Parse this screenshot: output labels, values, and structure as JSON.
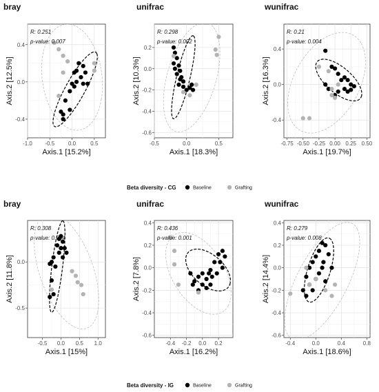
{
  "chart_data": [
    {
      "type": "scatter",
      "title": "bray",
      "xlabel": "Axis.1  [15.2%]",
      "ylabel": "Axis.2  [12.5%]",
      "xlim": [
        -1.0,
        0.75
      ],
      "ylim": [
        -0.6,
        0.62
      ],
      "xticks": [
        -1.0,
        -0.5,
        0.0,
        0.5
      ],
      "yticks": [
        -0.4,
        0.0,
        0.4
      ],
      "xtick_labels": [
        "-1.0",
        "-0.5",
        "0.0",
        "0.5"
      ],
      "ytick_labels": [
        "-0.4",
        "0.0",
        "0.4"
      ],
      "annotation": {
        "r": "R: 0.251",
        "p": "p-value: 0.007"
      },
      "grid": true,
      "series": [
        {
          "name": "Baseline",
          "color": "#000000",
          "points": [
            [
              0.15,
              0.2
            ],
            [
              0.25,
              0.17
            ],
            [
              0.1,
              0.12
            ],
            [
              0.05,
              0.1
            ],
            [
              0.3,
              0.1
            ],
            [
              0.2,
              0.05
            ],
            [
              0.1,
              0.0
            ],
            [
              0.0,
              -0.02
            ],
            [
              0.25,
              -0.02
            ],
            [
              0.35,
              -0.02
            ],
            [
              -0.05,
              -0.1
            ],
            [
              0.05,
              -0.05
            ],
            [
              -0.15,
              -0.2
            ],
            [
              -0.05,
              -0.3
            ],
            [
              -0.25,
              -0.32
            ],
            [
              -0.2,
              -0.35
            ],
            [
              -0.2,
              -0.4
            ]
          ]
        },
        {
          "name": "Grafting",
          "color": "#b3b3b3",
          "points": [
            [
              -0.4,
              0.42
            ],
            [
              -0.3,
              0.35
            ],
            [
              -0.2,
              0.28
            ],
            [
              -0.1,
              0.22
            ],
            [
              0.5,
              0.2
            ],
            [
              0.5,
              0.12
            ],
            [
              -0.2,
              0.1
            ],
            [
              -0.3,
              -0.15
            ]
          ]
        }
      ],
      "ellipses": [
        {
          "group": "Baseline",
          "cx": 0.07,
          "cy": -0.08,
          "rx": 0.62,
          "ry": 0.16,
          "angle": 38,
          "style": "dashed-black"
        },
        {
          "group": "Grafting",
          "cx": 0.0,
          "cy": 0.05,
          "rx": 0.7,
          "ry": 0.55,
          "angle": -20,
          "style": "dashed-gray"
        }
      ]
    },
    {
      "type": "scatter",
      "title": "unifrac",
      "xlabel": "Axis.1  [18.3%]",
      "ylabel": "Axis.2  [10.3%]",
      "xlim": [
        -0.5,
        0.72
      ],
      "ylim": [
        -0.65,
        0.42
      ],
      "xticks": [
        -0.5,
        0.0,
        0.5
      ],
      "yticks": [
        -0.6,
        -0.4,
        -0.2,
        0.0,
        0.2
      ],
      "xtick_labels": [
        "-0.5",
        "0.0",
        "0.5"
      ],
      "ytick_labels": [
        "-0.6",
        "-0.4",
        "-0.2",
        "0.0",
        "0.2"
      ],
      "annotation": {
        "r": "R: 0.298",
        "p": "p-value: 0.002"
      },
      "grid": true,
      "series": [
        {
          "name": "Baseline",
          "color": "#000000",
          "points": [
            [
              -0.2,
              0.2
            ],
            [
              -0.18,
              0.15
            ],
            [
              -0.15,
              0.1
            ],
            [
              -0.2,
              0.05
            ],
            [
              -0.12,
              0.03
            ],
            [
              -0.18,
              0.0
            ],
            [
              -0.1,
              -0.02
            ],
            [
              -0.15,
              -0.05
            ],
            [
              -0.08,
              -0.08
            ],
            [
              -0.05,
              -0.12
            ],
            [
              -0.12,
              -0.15
            ],
            [
              -0.05,
              -0.17
            ],
            [
              0.0,
              -0.2
            ],
            [
              0.05,
              -0.18
            ],
            [
              0.1,
              -0.2
            ],
            [
              0.08,
              -0.15
            ],
            [
              -0.1,
              -0.1
            ]
          ]
        },
        {
          "name": "Grafting",
          "color": "#b3b3b3",
          "points": [
            [
              0.5,
              0.3
            ],
            [
              0.45,
              0.18
            ],
            [
              0.47,
              0.13
            ],
            [
              -0.2,
              0.12
            ],
            [
              0.15,
              -0.15
            ],
            [
              -0.05,
              -0.22
            ],
            [
              0.05,
              -0.25
            ]
          ]
        }
      ],
      "ellipses": [
        {
          "group": "Baseline",
          "cx": -0.05,
          "cy": -0.08,
          "rx": 0.42,
          "ry": 0.1,
          "angle": 68,
          "style": "dashed-black"
        },
        {
          "group": "Grafting",
          "cx": 0.08,
          "cy": -0.08,
          "rx": 0.58,
          "ry": 0.35,
          "angle": 55,
          "style": "dashed-gray"
        }
      ]
    },
    {
      "type": "scatter",
      "title": "wunifrac",
      "xlabel": "Axis.1  [19.7%]",
      "ylabel": "Axis.2  [16.3%]",
      "xlim": [
        -0.8,
        0.55
      ],
      "ylim": [
        -0.6,
        0.68
      ],
      "xticks": [
        -0.75,
        -0.5,
        -0.25,
        0.0,
        0.25,
        0.5
      ],
      "yticks": [
        -0.4,
        0.0,
        0.4
      ],
      "xtick_labels": [
        "-0.75",
        "-0.50",
        "-0.25",
        "0.00",
        "0.25",
        "0.50"
      ],
      "ytick_labels": [
        "-0.4",
        "0.0",
        "0.4"
      ],
      "annotation": {
        "r": "R: 0.21",
        "p": "p-value: 0.004"
      },
      "grid": true,
      "series": [
        {
          "name": "Baseline",
          "color": "#000000",
          "points": [
            [
              -0.15,
              0.38
            ],
            [
              -0.05,
              0.2
            ],
            [
              0.0,
              0.18
            ],
            [
              0.05,
              0.12
            ],
            [
              0.1,
              0.05
            ],
            [
              0.15,
              0.08
            ],
            [
              0.2,
              0.05
            ],
            [
              0.25,
              0.0
            ],
            [
              0.3,
              -0.02
            ],
            [
              0.25,
              -0.06
            ],
            [
              0.2,
              -0.08
            ],
            [
              0.15,
              -0.05
            ],
            [
              0.05,
              -0.08
            ],
            [
              -0.15,
              0.0
            ],
            [
              0.0,
              -0.12
            ],
            [
              -0.1,
              -0.05
            ]
          ]
        },
        {
          "name": "Grafting",
          "color": "#b3b3b3",
          "points": [
            [
              -0.25,
              0.2
            ],
            [
              -0.1,
              0.15
            ],
            [
              0.05,
              0.0
            ],
            [
              -0.05,
              -0.05
            ],
            [
              -0.05,
              -0.12
            ],
            [
              0.0,
              -0.15
            ],
            [
              -0.5,
              -0.38
            ],
            [
              -0.4,
              -0.38
            ]
          ]
        }
      ],
      "ellipses": [
        {
          "group": "Baseline",
          "cx": 0.06,
          "cy": 0.05,
          "rx": 0.4,
          "ry": 0.16,
          "angle": -28,
          "style": "dashed-black"
        },
        {
          "group": "Grafting",
          "cx": -0.13,
          "cy": 0.02,
          "rx": 0.7,
          "ry": 0.45,
          "angle": 40,
          "style": "dashed-gray"
        }
      ]
    },
    {
      "type": "scatter",
      "title": "bray",
      "xlabel": "Axis.1  [15%]",
      "ylabel": "Axis.2  [11.8%]",
      "xlim": [
        -0.9,
        1.2
      ],
      "ylim": [
        -0.82,
        0.45
      ],
      "xticks": [
        -0.5,
        0.0,
        0.5,
        1.0
      ],
      "yticks": [
        -0.5,
        0.0
      ],
      "xtick_labels": [
        "-0.5",
        "0.0",
        "0.5",
        "1.0"
      ],
      "ytick_labels": [
        "-0.5",
        "0.0"
      ],
      "annotation": {
        "r": "R: 0.308",
        "p": "p-value: 0.004"
      },
      "grid": true,
      "series": [
        {
          "name": "Baseline",
          "color": "#000000",
          "points": [
            [
              0.0,
              0.28
            ],
            [
              -0.05,
              0.25
            ],
            [
              0.05,
              0.22
            ],
            [
              -0.1,
              0.18
            ],
            [
              0.0,
              0.15
            ],
            [
              0.1,
              0.15
            ],
            [
              0.15,
              0.1
            ],
            [
              -0.05,
              0.1
            ],
            [
              -0.2,
              0.05
            ],
            [
              -0.3,
              -0.02
            ],
            [
              -0.25,
              0.0
            ],
            [
              -0.15,
              -0.05
            ],
            [
              0.05,
              0.05
            ],
            [
              -0.25,
              -0.2
            ],
            [
              -0.2,
              -0.35
            ],
            [
              -0.3,
              -0.38
            ]
          ]
        },
        {
          "name": "Grafting",
          "color": "#b3b3b3",
          "points": [
            [
              0.3,
              -0.1
            ],
            [
              0.4,
              -0.15
            ],
            [
              0.45,
              -0.22
            ],
            [
              0.55,
              -0.25
            ],
            [
              0.6,
              -0.35
            ],
            [
              -0.25,
              -0.3
            ]
          ]
        }
      ],
      "ellipses": [
        {
          "group": "Baseline",
          "cx": -0.1,
          "cy": -0.05,
          "rx": 0.52,
          "ry": 0.14,
          "angle": 72,
          "style": "dashed-black"
        },
        {
          "group": "Grafting",
          "cx": 0.15,
          "cy": -0.1,
          "rx": 0.95,
          "ry": 0.5,
          "angle": -28,
          "style": "dashed-gray"
        }
      ]
    },
    {
      "type": "scatter",
      "title": "unifrac",
      "xlabel": "Axis.1  [16.2%]",
      "ylabel": "Axis.2  [7.8%]",
      "xlim": [
        -0.6,
        0.38
      ],
      "ylim": [
        -0.62,
        0.42
      ],
      "xticks": [
        -0.4,
        -0.2,
        0.0,
        0.2
      ],
      "yticks": [
        -0.6,
        -0.4,
        -0.2,
        0.0,
        0.2,
        0.4
      ],
      "xtick_labels": [
        "-0.4",
        "-0.2",
        "0.0",
        "0.2"
      ],
      "ytick_labels": [
        "-0.6",
        "-0.4",
        "-0.2",
        "0.0",
        "0.2",
        "0.4"
      ],
      "annotation": {
        "r": "R: 0.436",
        "p": "p-value: 0.001"
      },
      "grid": true,
      "series": [
        {
          "name": "Baseline",
          "color": "#000000",
          "points": [
            [
              0.25,
              0.15
            ],
            [
              0.2,
              0.12
            ],
            [
              0.28,
              0.1
            ],
            [
              0.22,
              0.05
            ],
            [
              0.15,
              0.05
            ],
            [
              0.25,
              0.0
            ],
            [
              0.1,
              -0.02
            ],
            [
              0.0,
              -0.05
            ],
            [
              0.18,
              -0.05
            ],
            [
              0.12,
              -0.08
            ],
            [
              0.05,
              -0.1
            ],
            [
              -0.05,
              -0.08
            ],
            [
              -0.1,
              -0.12
            ],
            [
              0.0,
              -0.15
            ],
            [
              0.1,
              -0.15
            ],
            [
              -0.05,
              -0.2
            ],
            [
              0.05,
              -0.18
            ],
            [
              -0.15,
              -0.05
            ],
            [
              -0.12,
              -0.15
            ],
            [
              0.08,
              -0.05
            ]
          ]
        },
        {
          "name": "Grafting",
          "color": "#b3b3b3",
          "points": [
            [
              -0.4,
              0.27
            ],
            [
              -0.35,
              0.15
            ],
            [
              -0.35,
              0.03
            ],
            [
              -0.3,
              -0.15
            ],
            [
              -0.05,
              -0.22
            ]
          ]
        }
      ],
      "ellipses": [
        {
          "group": "Baseline",
          "cx": 0.07,
          "cy": -0.02,
          "rx": 0.3,
          "ry": 0.15,
          "angle": -25,
          "style": "dashed-black"
        },
        {
          "group": "Grafting",
          "cx": -0.05,
          "cy": -0.05,
          "rx": 0.47,
          "ry": 0.28,
          "angle": -38,
          "style": "dashed-gray"
        }
      ]
    },
    {
      "type": "scatter",
      "title": "wunifrac",
      "xlabel": "Axis.1  [18.6%]",
      "ylabel": "Axis.2  [14.4%]",
      "xlim": [
        -0.5,
        0.85
      ],
      "ylim": [
        -0.62,
        0.42
      ],
      "xticks": [
        -0.4,
        0.0,
        0.4,
        0.8
      ],
      "yticks": [
        -0.6,
        -0.4,
        -0.2,
        0.0,
        0.2,
        0.4
      ],
      "xtick_labels": [
        "-0.4",
        "0.0",
        "0.4",
        "0.8"
      ],
      "ytick_labels": [
        "-0.6",
        "-0.4",
        "-0.2",
        "0.0",
        "0.2",
        "0.4"
      ],
      "annotation": {
        "r": "R: 0.279",
        "p": "p-value: 0.008"
      },
      "grid": true,
      "series": [
        {
          "name": "Baseline",
          "color": "#000000",
          "points": [
            [
              0.1,
              0.22
            ],
            [
              0.15,
              0.2
            ],
            [
              0.05,
              0.15
            ],
            [
              0.2,
              0.12
            ],
            [
              0.0,
              0.1
            ],
            [
              0.12,
              0.05
            ],
            [
              -0.05,
              0.05
            ],
            [
              0.25,
              0.0
            ],
            [
              0.1,
              0.0
            ],
            [
              -0.1,
              0.0
            ],
            [
              0.05,
              -0.05
            ],
            [
              -0.15,
              -0.08
            ],
            [
              0.0,
              -0.1
            ],
            [
              -0.1,
              -0.15
            ],
            [
              0.15,
              -0.12
            ],
            [
              -0.2,
              -0.2
            ],
            [
              -0.05,
              -0.2
            ],
            [
              -0.15,
              -0.25
            ]
          ]
        },
        {
          "name": "Grafting",
          "color": "#b3b3b3",
          "points": [
            [
              -0.15,
              0.0
            ],
            [
              0.0,
              -0.1
            ],
            [
              -0.1,
              -0.15
            ],
            [
              0.3,
              -0.15
            ],
            [
              0.15,
              -0.2
            ],
            [
              0.25,
              -0.25
            ],
            [
              -0.4,
              -0.23
            ]
          ]
        }
      ],
      "ellipses": [
        {
          "group": "Baseline",
          "cx": 0.05,
          "cy": -0.02,
          "rx": 0.33,
          "ry": 0.16,
          "angle": 55,
          "style": "dashed-black"
        },
        {
          "group": "Grafting",
          "cx": 0.1,
          "cy": -0.12,
          "rx": 0.72,
          "ry": 0.32,
          "angle": 40,
          "style": "dashed-gray"
        }
      ]
    }
  ],
  "legends": [
    {
      "title": "Beta diversity - CG",
      "items": [
        {
          "label": "Baseline",
          "color": "#000000"
        },
        {
          "label": "Grafting",
          "color": "#b3b3b3"
        }
      ]
    },
    {
      "title": "Beta diversity - IG",
      "items": [
        {
          "label": "Baseline",
          "color": "#000000"
        },
        {
          "label": "Grafting",
          "color": "#b3b3b3"
        }
      ]
    }
  ]
}
